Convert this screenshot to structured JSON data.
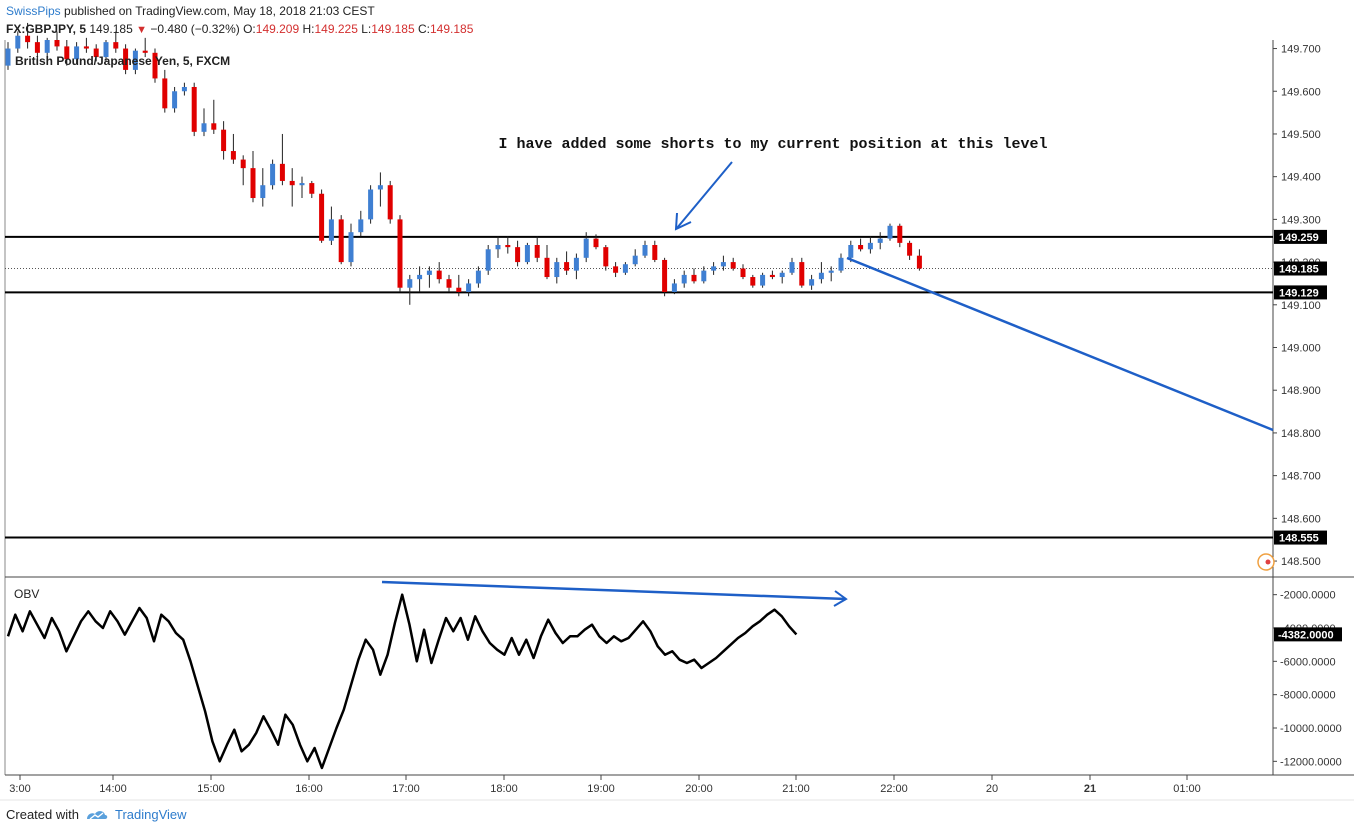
{
  "header": {
    "author": "SwissPips",
    "published_text": "published on TradingView.com, May 18, 2018 21:03 CEST",
    "symbol": "FX:GBPJPY, 5",
    "last": "149.185",
    "change": "−0.480 (−0.32%)",
    "o_label": "O:",
    "o_val": "149.209",
    "h_label": "H:",
    "h_val": "149.225",
    "l_label": "L:",
    "l_val": "149.185",
    "c_label": "C:",
    "c_val": "149.185"
  },
  "chart_data": [
    {
      "type": "candlestick",
      "title": "British Pound/Japanese Yen, 5, FXCM",
      "ylim": [
        148.465,
        149.72
      ],
      "y_ticks": [
        "149.700",
        "149.600",
        "149.500",
        "149.400",
        "149.300",
        "149.200",
        "149.100",
        "149.000",
        "148.900",
        "148.800",
        "148.700",
        "148.600",
        "148.500"
      ],
      "x_ticks": [
        "3:00",
        "14:00",
        "15:00",
        "16:00",
        "17:00",
        "18:00",
        "19:00",
        "20:00",
        "21:00",
        "22:00",
        "20",
        "21",
        "01:00"
      ],
      "price_labels": [
        "149.259",
        "149.185",
        "149.129",
        "148.555"
      ],
      "horizontal_levels": [
        149.259,
        149.129,
        148.555
      ],
      "last_price": 149.185,
      "annotation": "I have added some shorts to my current position at this level",
      "candles": [
        [
          149.66,
          149.715,
          149.65,
          149.7
        ],
        [
          149.7,
          149.74,
          149.69,
          149.73
        ],
        [
          149.73,
          149.76,
          149.7,
          149.715
        ],
        [
          149.715,
          149.73,
          149.67,
          149.69
        ],
        [
          149.69,
          149.725,
          149.68,
          149.72
        ],
        [
          149.72,
          149.74,
          149.695,
          149.705
        ],
        [
          149.705,
          149.72,
          149.66,
          149.675
        ],
        [
          149.675,
          149.715,
          149.665,
          149.705
        ],
        [
          149.705,
          149.725,
          149.69,
          149.7
        ],
        [
          149.7,
          149.71,
          149.67,
          149.68
        ],
        [
          149.68,
          149.72,
          149.67,
          149.715
        ],
        [
          149.715,
          149.74,
          149.69,
          149.7
        ],
        [
          149.7,
          149.71,
          149.64,
          149.65
        ],
        [
          149.65,
          149.7,
          149.64,
          149.695
        ],
        [
          149.695,
          149.725,
          149.68,
          149.69
        ],
        [
          149.69,
          149.7,
          149.62,
          149.63
        ],
        [
          149.63,
          149.65,
          149.55,
          149.56
        ],
        [
          149.56,
          149.61,
          149.55,
          149.6
        ],
        [
          149.6,
          149.62,
          149.59,
          149.61
        ],
        [
          149.61,
          149.62,
          149.495,
          149.505
        ],
        [
          149.505,
          149.56,
          149.495,
          149.525
        ],
        [
          149.525,
          149.58,
          149.5,
          149.51
        ],
        [
          149.51,
          149.53,
          149.44,
          149.46
        ],
        [
          149.46,
          149.5,
          149.43,
          149.44
        ],
        [
          149.44,
          149.45,
          149.38,
          149.42
        ],
        [
          149.42,
          149.46,
          149.34,
          149.35
        ],
        [
          149.35,
          149.42,
          149.33,
          149.38
        ],
        [
          149.38,
          149.44,
          149.37,
          149.43
        ],
        [
          149.43,
          149.5,
          149.38,
          149.39
        ],
        [
          149.39,
          149.42,
          149.33,
          149.38
        ],
        [
          149.38,
          149.4,
          149.35,
          149.385
        ],
        [
          149.385,
          149.39,
          149.35,
          149.36
        ],
        [
          149.36,
          149.37,
          149.245,
          149.25
        ],
        [
          149.25,
          149.33,
          149.24,
          149.3
        ],
        [
          149.3,
          149.31,
          149.195,
          149.2
        ],
        [
          149.2,
          149.29,
          149.19,
          149.27
        ],
        [
          149.27,
          149.32,
          149.26,
          149.3
        ],
        [
          149.3,
          149.38,
          149.29,
          149.37
        ],
        [
          149.37,
          149.41,
          149.33,
          149.38
        ],
        [
          149.38,
          149.39,
          149.29,
          149.3
        ],
        [
          149.3,
          149.31,
          149.13,
          149.14
        ],
        [
          149.14,
          149.17,
          149.1,
          149.16
        ],
        [
          149.16,
          149.19,
          149.13,
          149.17
        ],
        [
          149.17,
          149.19,
          149.14,
          149.18
        ],
        [
          149.18,
          149.2,
          149.15,
          149.16
        ],
        [
          149.16,
          149.17,
          149.13,
          149.14
        ],
        [
          149.14,
          149.17,
          149.12,
          149.13
        ],
        [
          149.13,
          149.16,
          149.12,
          149.15
        ],
        [
          149.15,
          149.19,
          149.14,
          149.18
        ],
        [
          149.18,
          149.24,
          149.17,
          149.23
        ],
        [
          149.23,
          149.26,
          149.21,
          149.24
        ],
        [
          149.24,
          149.26,
          149.22,
          149.235
        ],
        [
          149.235,
          149.25,
          149.19,
          149.2
        ],
        [
          149.2,
          149.245,
          149.195,
          149.24
        ],
        [
          149.24,
          149.26,
          149.2,
          149.21
        ],
        [
          149.21,
          149.24,
          149.16,
          149.165
        ],
        [
          149.165,
          149.21,
          149.15,
          149.2
        ],
        [
          149.2,
          149.225,
          149.17,
          149.18
        ],
        [
          149.18,
          149.22,
          149.16,
          149.21
        ],
        [
          149.21,
          149.27,
          149.2,
          149.255
        ],
        [
          149.255,
          149.265,
          149.23,
          149.235
        ],
        [
          149.235,
          149.24,
          149.18,
          149.19
        ],
        [
          149.19,
          149.2,
          149.165,
          149.175
        ],
        [
          149.175,
          149.2,
          149.17,
          149.195
        ],
        [
          149.195,
          149.23,
          149.19,
          149.215
        ],
        [
          149.215,
          149.25,
          149.21,
          149.24
        ],
        [
          149.24,
          149.25,
          149.2,
          149.205
        ],
        [
          149.205,
          149.21,
          149.12,
          149.13
        ],
        [
          149.13,
          149.16,
          149.125,
          149.15
        ],
        [
          149.15,
          149.18,
          149.14,
          149.17
        ],
        [
          149.17,
          149.185,
          149.15,
          149.155
        ],
        [
          149.155,
          149.19,
          149.15,
          149.18
        ],
        [
          149.18,
          149.2,
          149.17,
          149.19
        ],
        [
          149.19,
          149.215,
          149.18,
          149.2
        ],
        [
          149.2,
          149.21,
          149.18,
          149.185
        ],
        [
          149.185,
          149.195,
          149.16,
          149.165
        ],
        [
          149.165,
          149.17,
          149.14,
          149.145
        ],
        [
          149.145,
          149.175,
          149.14,
          149.17
        ],
        [
          149.17,
          149.18,
          149.16,
          149.165
        ],
        [
          149.165,
          149.18,
          149.15,
          149.175
        ],
        [
          149.175,
          149.21,
          149.17,
          149.2
        ],
        [
          149.2,
          149.21,
          149.14,
          149.145
        ],
        [
          149.145,
          149.17,
          149.135,
          149.16
        ],
        [
          149.16,
          149.2,
          149.15,
          149.175
        ],
        [
          149.175,
          149.19,
          149.155,
          149.18
        ],
        [
          149.18,
          149.22,
          149.175,
          149.21
        ],
        [
          149.21,
          149.25,
          149.2,
          149.24
        ],
        [
          149.24,
          149.255,
          149.225,
          149.23
        ],
        [
          149.23,
          149.26,
          149.22,
          149.245
        ],
        [
          149.245,
          149.27,
          149.23,
          149.255
        ],
        [
          149.255,
          149.29,
          149.25,
          149.285
        ],
        [
          149.285,
          149.29,
          149.235,
          149.245
        ],
        [
          149.245,
          149.25,
          149.205,
          149.215
        ],
        [
          149.215,
          149.23,
          149.18,
          149.185
        ]
      ]
    },
    {
      "type": "line",
      "title": "OBV",
      "ylim": [
        -12700,
        -1000
      ],
      "y_ticks": [
        "-2000.0000",
        "-4000.0000",
        "-6000.0000",
        "-8000.0000",
        "-10000.0000",
        "-12000.0000"
      ],
      "last_value_label": "-4382.0000",
      "values": [
        -4500,
        -3200,
        -4200,
        -3000,
        -3800,
        -4600,
        -3400,
        -4200,
        -5400,
        -4500,
        -3600,
        -3000,
        -3600,
        -4000,
        -3000,
        -3600,
        -4400,
        -3600,
        -2800,
        -3400,
        -4800,
        -3200,
        -3600,
        -4300,
        -4700,
        -6000,
        -7500,
        -9000,
        -10800,
        -12000,
        -11000,
        -10100,
        -11400,
        -11000,
        -10300,
        -9300,
        -10100,
        -11000,
        -9200,
        -9800,
        -11000,
        -12000,
        -11200,
        -12400,
        -11200,
        -10000,
        -8900,
        -7400,
        -5900,
        -4700,
        -5300,
        -6800,
        -5600,
        -3700,
        -2000,
        -3800,
        -6000,
        -4100,
        -6100,
        -4700,
        -3400,
        -4200,
        -3400,
        -4700,
        -3300,
        -4200,
        -4900,
        -5300,
        -5600,
        -4600,
        -5600,
        -4700,
        -5800,
        -4500,
        -3500,
        -4300,
        -4900,
        -4500,
        -4500,
        -4100,
        -3800,
        -4500,
        -4900,
        -4500,
        -4800,
        -4600,
        -4100,
        -3600,
        -4200,
        -5100,
        -5600,
        -5400,
        -5900,
        -6100,
        -5900,
        -6400,
        -6100,
        -5800,
        -5400,
        -5000,
        -4600,
        -4300,
        -3900,
        -3600,
        -3200,
        -2900,
        -3300,
        -3900,
        -4382
      ]
    }
  ],
  "footer": {
    "created_with": "Created with",
    "brand": "TradingView"
  },
  "colors": {
    "up": "#3f7fd2",
    "down": "#e00000",
    "drawing_blue": "#1e5fc7",
    "author": "#2e7ccc"
  }
}
